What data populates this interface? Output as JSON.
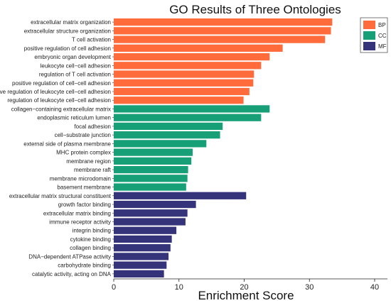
{
  "chart_data": {
    "type": "bar",
    "orientation": "horizontal",
    "title": "GO Results of Three Ontologies",
    "xlabel": "Enrichment Score",
    "ylabel": "",
    "xlim": [
      0,
      40
    ],
    "xticks": [
      0,
      10,
      20,
      30,
      40
    ],
    "legend_position": "top-right",
    "groups": [
      {
        "name": "BP",
        "color": "#FF6B3A"
      },
      {
        "name": "CC",
        "color": "#17A078"
      },
      {
        "name": "MF",
        "color": "#35337A"
      }
    ],
    "categories": [
      "extracellular matrix organization",
      "extracellular structure organization",
      "T cell activation",
      "positive regulation of cell adhesion",
      "embryonic organ development",
      "leukocyte cell−cell adhesion",
      "regulation of T cell activation",
      "positive regulation of cell−cell adhesion",
      "positive regulation of leukocyte cell−cell adhesion",
      "regulation of leukocyte cell−cell adhesion",
      "collagen−containing extracellular matrix",
      "endoplasmic reticulum lumen",
      "focal adhesion",
      "cell−substrate junction",
      "external side of plasma membrane",
      "MHC protein complex",
      "membrane region",
      "membrane raft",
      "membrane microdomain",
      "basement membrane",
      "extracellular matrix structural constituent",
      "growth factor binding",
      "extracellular matrix binding",
      "immune receptor activity",
      "integrin binding",
      "cytokine binding",
      "collagen binding",
      "DNA−dependent ATPase activity",
      "carbohydrate binding",
      "catalytic activity, acting on DNA"
    ],
    "values": [
      33.5,
      33.3,
      32.4,
      25.9,
      23.9,
      22.6,
      21.5,
      21.4,
      20.8,
      19.9,
      23.9,
      22.6,
      16.7,
      16.3,
      14.2,
      12.1,
      11.9,
      11.4,
      11.3,
      11.1,
      20.3,
      12.6,
      11.3,
      11.0,
      9.6,
      8.9,
      8.7,
      8.4,
      8.1,
      7.7
    ],
    "group_of": [
      "BP",
      "BP",
      "BP",
      "BP",
      "BP",
      "BP",
      "BP",
      "BP",
      "BP",
      "BP",
      "CC",
      "CC",
      "CC",
      "CC",
      "CC",
      "CC",
      "CC",
      "CC",
      "CC",
      "CC",
      "MF",
      "MF",
      "MF",
      "MF",
      "MF",
      "MF",
      "MF",
      "MF",
      "MF",
      "MF"
    ]
  }
}
